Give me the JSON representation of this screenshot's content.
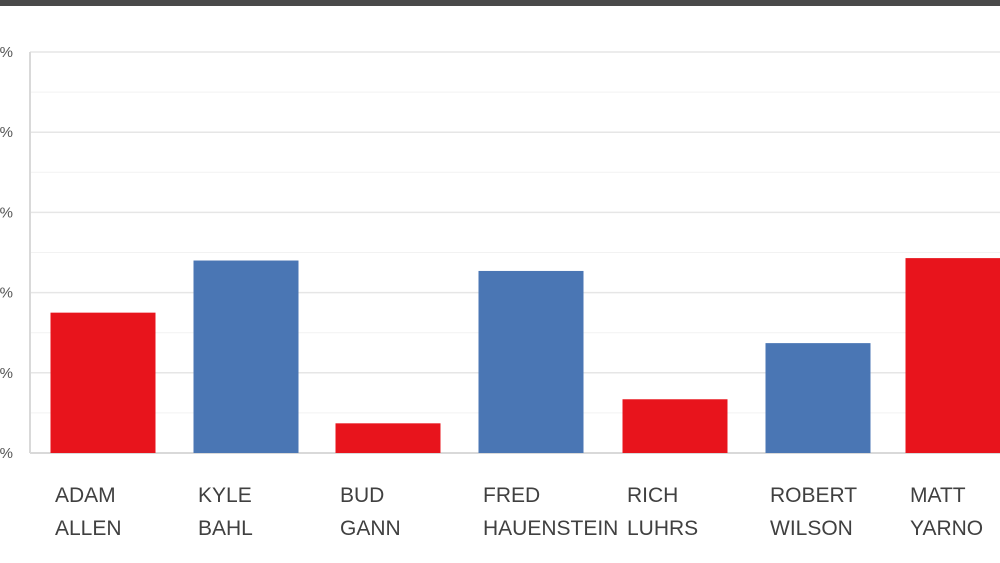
{
  "chart_data": {
    "type": "bar",
    "title": "",
    "xlabel": "",
    "ylabel": "",
    "ylim": [
      0,
      50
    ],
    "y_ticks": [
      0,
      10,
      20,
      30,
      40,
      50
    ],
    "y_tick_labels": [
      "%",
      "%",
      "%",
      "%",
      "%",
      "%"
    ],
    "grid": true,
    "categories": [
      [
        "ADAM",
        "ALLEN"
      ],
      [
        "KYLE",
        "BAHL"
      ],
      [
        "BUD",
        "GANN"
      ],
      [
        "FRED",
        "HAUENSTEIN"
      ],
      [
        "RICH",
        "LUHRS"
      ],
      [
        "ROBERT",
        "WILSON"
      ],
      [
        "MATT",
        "YARNO"
      ]
    ],
    "values": [
      17.5,
      24,
      3.7,
      22.7,
      6.7,
      13.7,
      24.3
    ],
    "colors": [
      "#e8141c",
      "#4a76b4",
      "#e8141c",
      "#4a76b4",
      "#e8141c",
      "#4a76b4",
      "#e8141c"
    ]
  }
}
